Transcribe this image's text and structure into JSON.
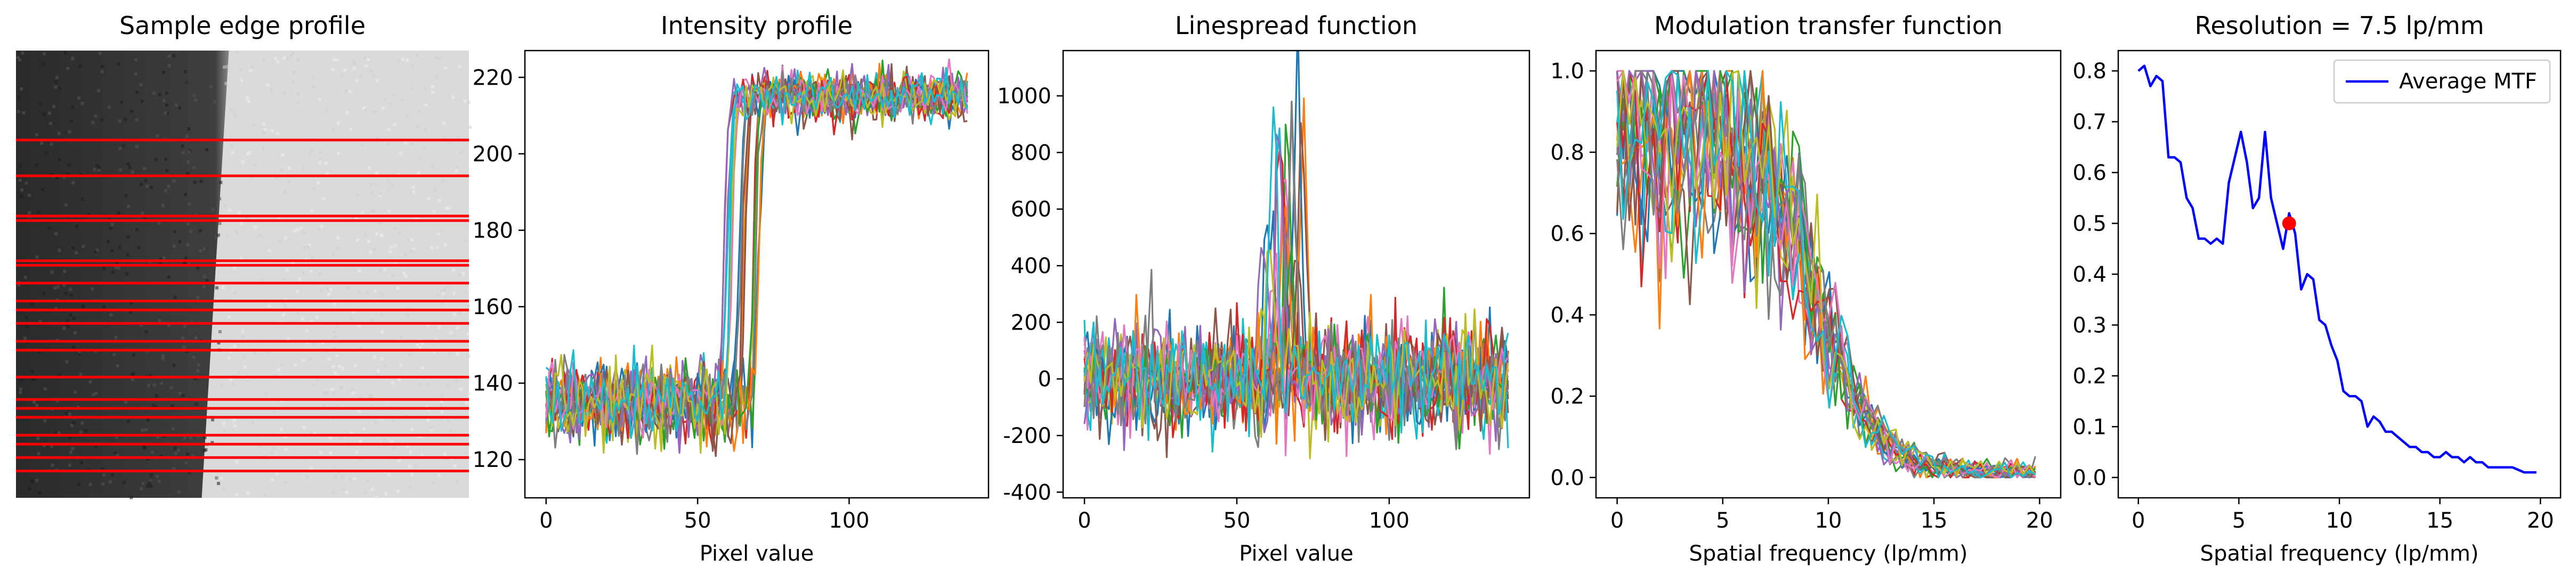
{
  "figure": {
    "width_in": "",
    "note": ""
  },
  "panels": [
    {
      "id": "edge",
      "title": "Sample edge profile",
      "kind": "image",
      "edge_position": 0.48,
      "left_gray": "#3a3a3a",
      "right_gray": "#dcdcdc",
      "line_color": "#ff0000",
      "line_rows_fraction": [
        0.2,
        0.28,
        0.37,
        0.38,
        0.47,
        0.48,
        0.52,
        0.56,
        0.58,
        0.61,
        0.65,
        0.67,
        0.73,
        0.78,
        0.8,
        0.82,
        0.86,
        0.88,
        0.91,
        0.94
      ]
    }
  ],
  "chart_data": [
    {
      "type": "line",
      "title": "Intensity profile",
      "xlabel": "Pixel value",
      "ylabel": "",
      "xlim": [
        -7,
        146
      ],
      "ylim": [
        110,
        227
      ],
      "xticks": [
        0,
        50,
        100
      ],
      "yticks": [
        120,
        140,
        160,
        180,
        200,
        220
      ],
      "description": "20 overlapping edge spread curves: ~135 before pixel ~58-70, rising to ~215 after pixel ~70",
      "series_count": 20,
      "model": {
        "low": 135,
        "high": 215,
        "edge_center_range": [
          58,
          72
        ],
        "noise_low": 5,
        "noise_high": 3,
        "length": 140
      }
    },
    {
      "type": "line",
      "title": "Linespread function",
      "xlabel": "Pixel value",
      "ylabel": "",
      "xlim": [
        -7,
        146
      ],
      "ylim": [
        -420,
        1160
      ],
      "xticks": [
        0,
        50,
        100
      ],
      "yticks": [
        -400,
        -200,
        0,
        200,
        400,
        600,
        800,
        1000
      ],
      "description": "20 derivative curves with noise around 0 and peaks up to ~1100 near pixel 60-72",
      "series_count": 20,
      "model": {
        "noise": 90,
        "peak_range": [
          300,
          1100
        ],
        "peak_center_range": [
          58,
          72
        ],
        "length": 140
      }
    },
    {
      "type": "line",
      "title": "Modulation transfer function",
      "xlabel": "Spatial frequency (lp/mm)",
      "ylabel": "",
      "xlim": [
        -1,
        21
      ],
      "ylim": [
        -0.05,
        1.05
      ],
      "xticks": [
        0,
        5,
        10,
        15,
        20
      ],
      "yticks": [
        0.0,
        0.2,
        0.4,
        0.6,
        0.8,
        1.0
      ],
      "description": "20 noisy MTF curves decaying from ~0.9 to ~0 by 15 lp/mm",
      "series_count": 20,
      "model": {
        "start": 0.85,
        "length": 70,
        "fmax": 19.8
      }
    },
    {
      "type": "line",
      "title": "Resolution = 7.5 lp/mm",
      "xlabel": "Spatial frequency (lp/mm)",
      "ylabel": "",
      "xlim": [
        -1,
        21
      ],
      "ylim": [
        -0.04,
        0.84
      ],
      "xticks": [
        0,
        5,
        10,
        15,
        20
      ],
      "yticks": [
        0.0,
        0.1,
        0.2,
        0.3,
        0.4,
        0.5,
        0.6,
        0.7,
        0.8
      ],
      "legend": {
        "location": "upper right",
        "entries": [
          "Average MTF"
        ]
      },
      "series": [
        {
          "name": "Average MTF",
          "color": "#0000ff",
          "x": [
            0,
            0.3,
            0.6,
            0.9,
            1.2,
            1.5,
            1.8,
            2.1,
            2.4,
            2.7,
            3.0,
            3.3,
            3.6,
            3.9,
            4.2,
            4.5,
            4.8,
            5.1,
            5.4,
            5.7,
            6.0,
            6.3,
            6.6,
            6.9,
            7.2,
            7.5,
            7.8,
            8.1,
            8.4,
            8.7,
            9.0,
            9.3,
            9.6,
            9.9,
            10.2,
            10.5,
            10.8,
            11.1,
            11.4,
            11.7,
            12.0,
            12.3,
            12.6,
            12.9,
            13.2,
            13.5,
            13.8,
            14.1,
            14.4,
            14.7,
            15.0,
            15.3,
            15.6,
            15.9,
            16.2,
            16.5,
            16.8,
            17.1,
            17.4,
            17.7,
            18.0,
            18.3,
            18.6,
            18.9,
            19.2,
            19.5,
            19.8
          ],
          "y": [
            0.8,
            0.81,
            0.77,
            0.79,
            0.78,
            0.63,
            0.63,
            0.62,
            0.55,
            0.53,
            0.47,
            0.47,
            0.46,
            0.47,
            0.46,
            0.58,
            0.63,
            0.68,
            0.62,
            0.53,
            0.55,
            0.68,
            0.55,
            0.5,
            0.45,
            0.52,
            0.48,
            0.37,
            0.4,
            0.39,
            0.31,
            0.3,
            0.26,
            0.23,
            0.17,
            0.16,
            0.16,
            0.15,
            0.1,
            0.12,
            0.11,
            0.09,
            0.09,
            0.08,
            0.07,
            0.06,
            0.06,
            0.05,
            0.05,
            0.04,
            0.04,
            0.05,
            0.04,
            0.04,
            0.03,
            0.04,
            0.03,
            0.03,
            0.02,
            0.02,
            0.02,
            0.02,
            0.02,
            0.015,
            0.01,
            0.01,
            0.01
          ]
        }
      ],
      "marker": {
        "x": 7.5,
        "y": 0.5,
        "color": "#ff0000"
      }
    }
  ],
  "palette": [
    "#1f77b4",
    "#ff7f0e",
    "#2ca02c",
    "#d62728",
    "#9467bd",
    "#8c564b",
    "#e377c2",
    "#7f7f7f",
    "#bcbd22",
    "#17becf"
  ]
}
